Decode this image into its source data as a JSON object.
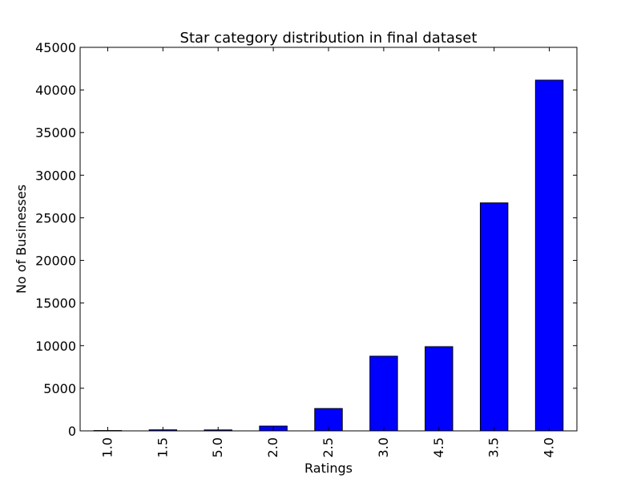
{
  "chart_data": {
    "type": "bar",
    "title": "Star category distribution in final dataset",
    "xlabel": "Ratings",
    "ylabel": "No of Businesses",
    "categories": [
      "1.0",
      "1.5",
      "5.0",
      "2.0",
      "2.5",
      "3.0",
      "4.5",
      "3.5",
      "4.0"
    ],
    "values": [
      40,
      120,
      110,
      560,
      2620,
      8760,
      9880,
      26750,
      41150
    ],
    "ylim": [
      0,
      45000
    ],
    "yticks": [
      0,
      5000,
      10000,
      15000,
      20000,
      25000,
      30000,
      35000,
      40000,
      45000
    ],
    "bar_color": "#0000ff",
    "edge_color": "#000000",
    "grid": false,
    "legend": "none"
  }
}
